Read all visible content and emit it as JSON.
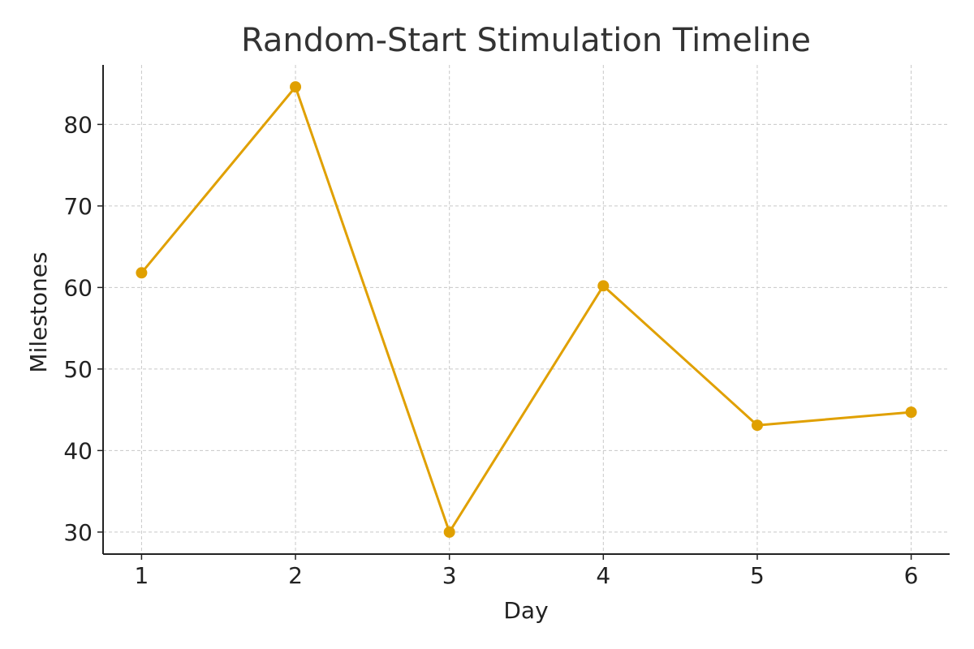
{
  "chart_data": {
    "type": "line",
    "title": "Random-Start Stimulation Timeline",
    "xlabel": "Day",
    "ylabel": "Milestones",
    "x": [
      1,
      2,
      3,
      4,
      5,
      6
    ],
    "series": [
      {
        "values": [
          61.8,
          84.6,
          30.0,
          60.2,
          43.1,
          44.7
        ],
        "color": "#E0A000"
      }
    ],
    "x_ticks": [
      1,
      2,
      3,
      4,
      5,
      6
    ],
    "y_ticks": [
      30,
      40,
      50,
      60,
      70,
      80
    ],
    "xlim": [
      0.75,
      6.25
    ],
    "ylim": [
      27.3,
      87.3
    ],
    "grid": true,
    "legend": "none"
  }
}
